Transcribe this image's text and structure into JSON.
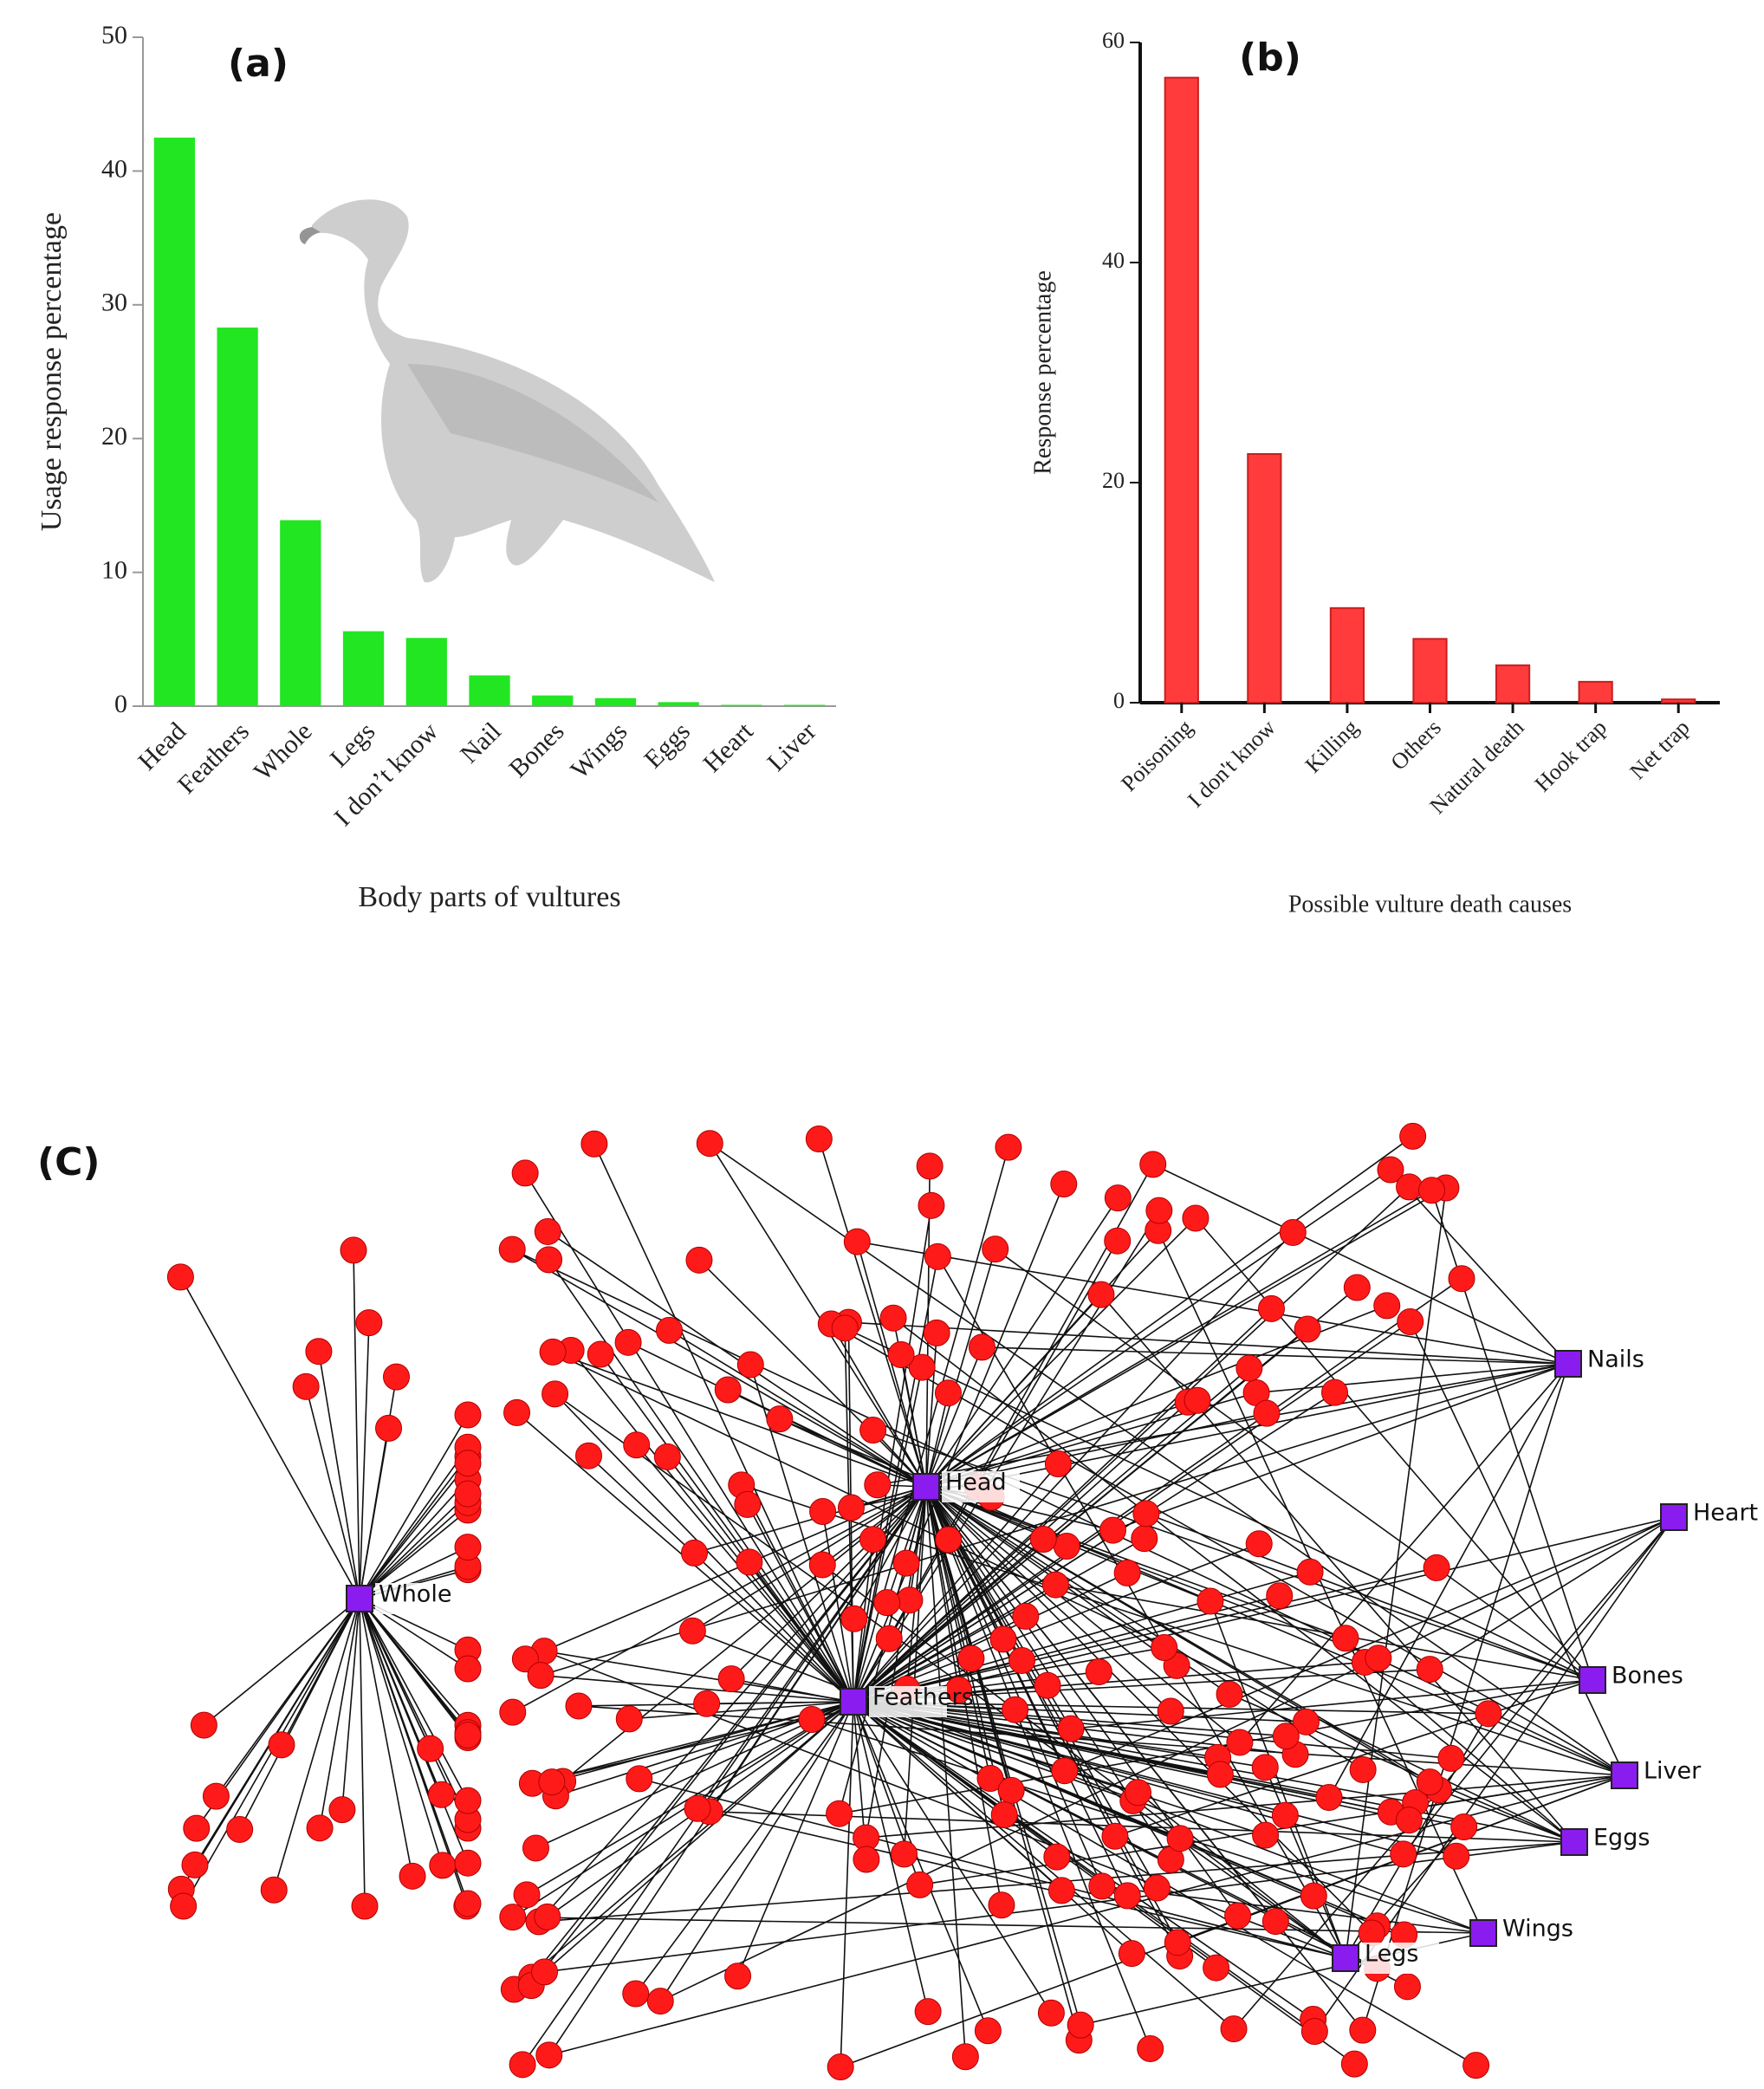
{
  "chart_data": [
    {
      "type": "bar",
      "title": "(a)",
      "x_label": "Body parts of vultures",
      "y_label": "Usage response percentage",
      "categories": [
        "Head",
        "Feathers",
        "Whole",
        "Legs",
        "I don’t know",
        "Nail",
        "Bones",
        "Wings",
        "Eggs",
        "Heart",
        "Liver"
      ],
      "values": [
        42.5,
        28.3,
        13.9,
        5.6,
        5.1,
        2.3,
        0.8,
        0.6,
        0.3,
        0.1,
        0.1
      ],
      "color": "#22e622",
      "ylim": [
        0,
        50
      ],
      "yticks": [
        0,
        10,
        20,
        30,
        40,
        50
      ]
    },
    {
      "type": "bar",
      "title": "(b)",
      "x_label": "Possible vulture death causes",
      "y_label": "Response percentage",
      "categories": [
        "Poisoning",
        "I don't know",
        "Killing",
        "Others",
        "Natural death",
        "Hook trap",
        "Net trap"
      ],
      "values": [
        56.8,
        22.6,
        8.6,
        5.8,
        3.4,
        1.9,
        0.3
      ],
      "color": "#ff3b3b",
      "ylim": [
        0,
        60
      ],
      "yticks": [
        0,
        20,
        40,
        60
      ]
    }
  ],
  "network": {
    "title": "(C)",
    "hubs": [
      "Whole",
      "Head",
      "Feathers",
      "Nails",
      "Heart",
      "Bones",
      "Liver",
      "Eggs",
      "Wings",
      "Legs"
    ]
  }
}
